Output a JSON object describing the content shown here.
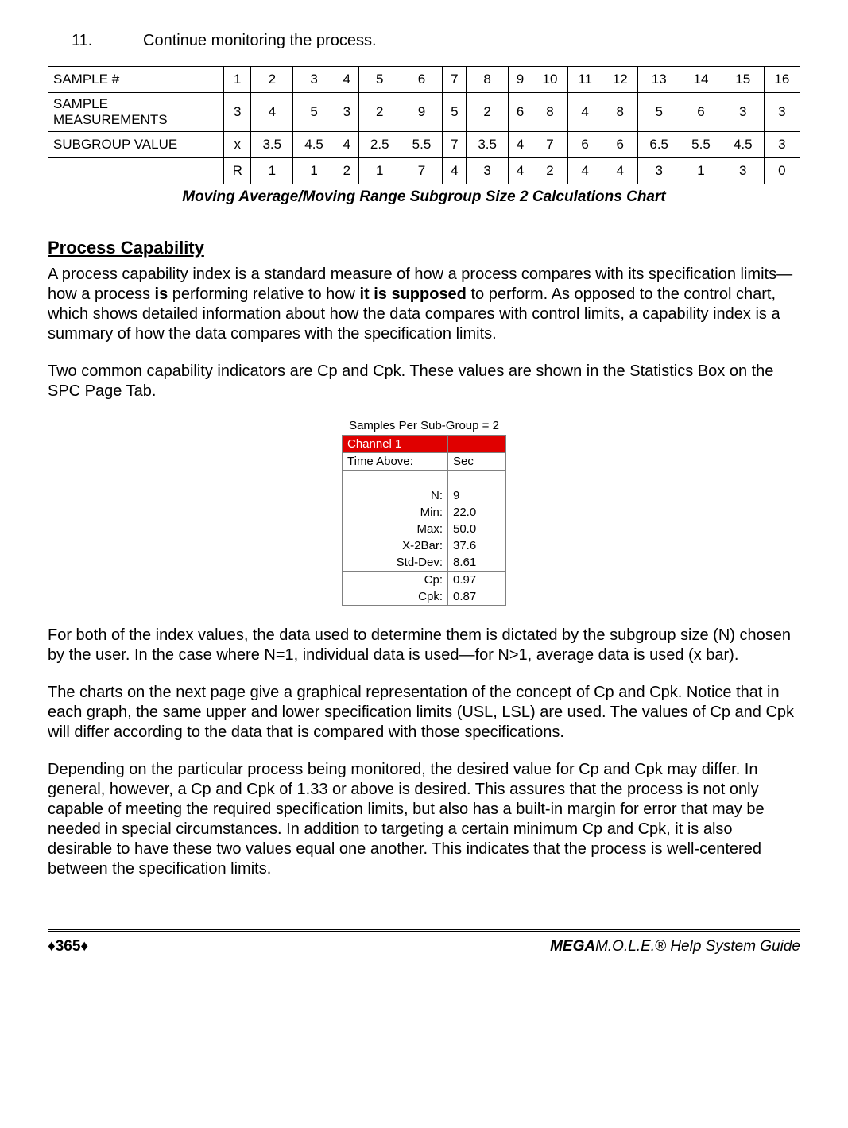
{
  "step": {
    "num": "11.",
    "text": "Continue monitoring the process."
  },
  "table": {
    "row1_label": "SAMPLE #",
    "row1": [
      "1",
      "2",
      "3",
      "4",
      "5",
      "6",
      "7",
      "8",
      "9",
      "10",
      "11",
      "12",
      "13",
      "14",
      "15",
      "16"
    ],
    "row2_label": "SAMPLE MEASUREMENTS",
    "row2": [
      "3",
      "4",
      "5",
      "3",
      "2",
      "9",
      "5",
      "2",
      "6",
      "8",
      "4",
      "8",
      "5",
      "6",
      "3",
      "3"
    ],
    "row3_label": "SUBGROUP VALUE",
    "row3": [
      "x",
      "3.5",
      "4.5",
      "4",
      "2.5",
      "5.5",
      "7",
      "3.5",
      "4",
      "7",
      "6",
      "6",
      "6.5",
      "5.5",
      "4.5",
      "3"
    ],
    "row4_label": "",
    "row4": [
      "R",
      "1",
      "1",
      "2",
      "1",
      "7",
      "4",
      "3",
      "4",
      "2",
      "4",
      "4",
      "3",
      "1",
      "3",
      "0"
    ]
  },
  "caption": "Moving Average/Moving Range Subgroup Size 2 Calculations Chart",
  "section_title": "Process Capability",
  "para1_a": "A process capability index is a standard measure of how a process compares with its specification limits—how a process ",
  "para1_b": "is",
  "para1_c": " performing relative to how ",
  "para1_d": "it is supposed",
  "para1_e": " to perform. As opposed to the control chart, which shows detailed information about how the data compares with control limits, a capability index is a summary of how the data compares with the specification limits.",
  "para2": "Two common capability indicators are Cp and Cpk.  These values are shown in the Statistics Box on the SPC Page Tab.",
  "stats": {
    "title": "Samples Per Sub-Group = 2",
    "channel": "Channel 1",
    "time_above_label": "Time Above:",
    "time_above_unit": "Sec",
    "rows": [
      {
        "label": "N:",
        "val": "9"
      },
      {
        "label": "Min:",
        "val": "22.0"
      },
      {
        "label": "Max:",
        "val": "50.0"
      },
      {
        "label": "X-2Bar:",
        "val": "37.6"
      },
      {
        "label": "Std-Dev:",
        "val": "8.61"
      }
    ],
    "rows2": [
      {
        "label": "Cp:",
        "val": "0.97"
      },
      {
        "label": "Cpk:",
        "val": "0.87"
      }
    ]
  },
  "para3": "For both of the index values, the data used to determine them is dictated by the subgroup size (N) chosen by the user. In the case where N=1, individual data is used—for N>1, average data is used (x bar).",
  "para4": "The charts on the next page give a graphical representation of the concept of Cp and Cpk. Notice that in each graph, the same upper and lower specification limits (USL, LSL) are used.  The values of Cp and Cpk will differ according to the data that is compared with those specifications.",
  "para5": "Depending on the particular process being monitored, the desired value for Cp and Cpk may differ. In general, however, a Cp and Cpk of 1.33 or above is desired. This assures that the process is not only capable of meeting the required specification limits, but also has a built-in margin for error that may be needed in special circumstances. In addition to targeting a certain minimum Cp and Cpk, it is also desirable to have these two values equal one another. This indicates that the process is well-centered between the specification limits.",
  "footer": {
    "page": "♦365♦",
    "mega": "MEGA",
    "guide": "M.O.L.E.® Help System Guide"
  }
}
